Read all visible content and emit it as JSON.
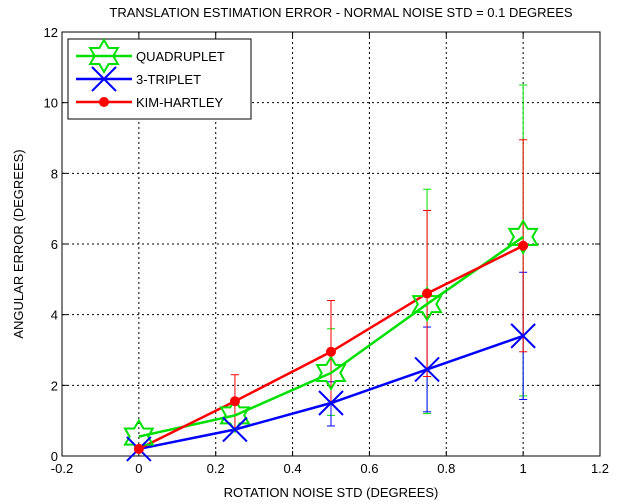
{
  "chart_data": {
    "type": "line",
    "title": "TRANSLATION ESTIMATION ERROR - NORMAL NOISE STD = 0.1 DEGREES",
    "xlabel": "ROTATION NOISE STD (DEGREES)",
    "ylabel": "ANGULAR ERROR (DEGREES)",
    "xlim": [
      -0.2,
      1.2
    ],
    "ylim": [
      0,
      12
    ],
    "xticks": [
      -0.2,
      0,
      0.2,
      0.4,
      0.6,
      0.8,
      1,
      1.2
    ],
    "xtick_labels": [
      "-0.2",
      "0",
      "0.2",
      "0.4",
      "0.6",
      "0.8",
      "1",
      "1.2"
    ],
    "yticks": [
      0,
      2,
      4,
      6,
      8,
      10,
      12
    ],
    "ytick_labels": [
      "0",
      "2",
      "4",
      "6",
      "8",
      "10",
      "12"
    ],
    "grid": true,
    "grid_style": "dotted",
    "legend_position": "top-left",
    "x": [
      0,
      0.25,
      0.5,
      0.75,
      1
    ],
    "series": [
      {
        "name": "QUADRUPLET",
        "color": "#00e000",
        "marker": "hexagram",
        "values": [
          0.55,
          1.15,
          2.35,
          4.3,
          6.2
        ],
        "error_low": [
          0.55,
          1.15,
          1.15,
          1.2,
          1.7
        ],
        "error_high": [
          0.55,
          1.15,
          3.6,
          7.55,
          10.5
        ]
      },
      {
        "name": "3-TRIPLET",
        "color": "#0000ff",
        "marker": "x",
        "values": [
          0.2,
          0.75,
          1.5,
          2.45,
          3.4
        ],
        "error_low": [
          0.2,
          0.75,
          0.85,
          1.25,
          1.6
        ],
        "error_high": [
          0.2,
          0.75,
          2.1,
          3.65,
          5.2
        ]
      },
      {
        "name": "KIM-HARTLEY",
        "color": "#ff0000",
        "marker": "dot",
        "values": [
          0.2,
          1.55,
          2.95,
          4.6,
          5.95
        ],
        "error_low": [
          0.2,
          0.75,
          1.5,
          2.25,
          2.95
        ],
        "error_high": [
          0.2,
          2.3,
          4.4,
          6.95,
          8.95
        ]
      }
    ]
  }
}
